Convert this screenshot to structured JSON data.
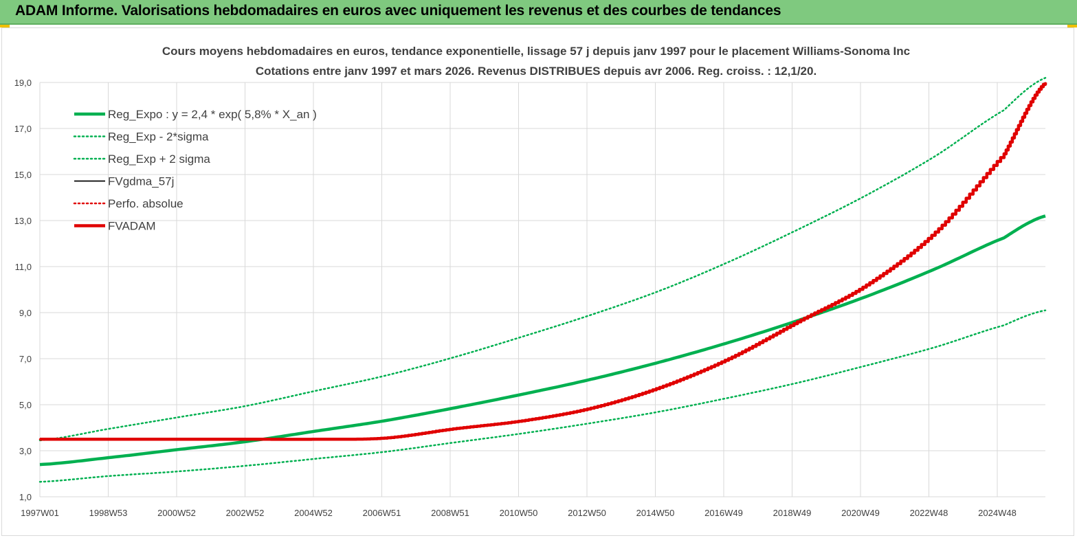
{
  "header": {
    "title": "ADAM Informe. Valorisations hebdomadaires en euros avec uniquement les revenus et des courbes de tendances"
  },
  "colors": {
    "green": "#00b050",
    "red": "#e00000",
    "black": "#000000",
    "header_bg": "#7fc97f",
    "grid": "#d9d9d9"
  },
  "chart_data": {
    "type": "line",
    "title": "Cours moyens hebdomadaires en euros, tendance exponentielle, lissage 57 j depuis janv 1997 pour le placement Williams-Sonoma Inc",
    "subtitle": "Cotations entre janv 1997 et mars 2026. Revenus DISTRIBUES depuis avr 2006. Reg. croiss. : 12,1/20.",
    "xlabel": "",
    "ylabel": "",
    "ylim": [
      1,
      19
    ],
    "grid": true,
    "legend_position": "top-left",
    "y_ticks": [
      "1,0",
      "3,0",
      "5,0",
      "7,0",
      "9,0",
      "11,0",
      "13,0",
      "15,0",
      "17,0",
      "19,0"
    ],
    "x_ticks": [
      "1997W01",
      "1998W53",
      "2000W52",
      "2002W52",
      "2004W52",
      "2006W51",
      "2008W51",
      "2010W50",
      "2012W50",
      "2014W50",
      "2016W49",
      "2018W49",
      "2020W49",
      "2022W48",
      "2024W48"
    ],
    "x": [
      1997.0,
      1999.0,
      2001.0,
      2003.0,
      2005.0,
      2007.0,
      2009.0,
      2011.0,
      2013.0,
      2015.0,
      2017.0,
      2019.0,
      2021.0,
      2023.0,
      2025.0,
      2026.2
    ],
    "series": [
      {
        "name": "Reg_Expo : y = 2,4 * exp( 5,8% *  X_an )",
        "style": "solid-thick",
        "color": "#00b050",
        "values": [
          2.4,
          2.7,
          3.05,
          3.4,
          3.85,
          4.3,
          4.85,
          5.45,
          6.1,
          6.85,
          7.7,
          8.65,
          9.7,
          10.9,
          12.25,
          13.2
        ]
      },
      {
        "name": "Reg_Exp - 2*sigma",
        "style": "dotted",
        "color": "#00b050",
        "values": [
          1.65,
          1.9,
          2.1,
          2.35,
          2.65,
          2.95,
          3.35,
          3.75,
          4.2,
          4.7,
          5.3,
          5.95,
          6.7,
          7.5,
          8.45,
          9.1
        ]
      },
      {
        "name": "Reg_Exp + 2 sigma",
        "style": "dotted",
        "color": "#00b050",
        "values": [
          3.45,
          3.95,
          4.45,
          4.95,
          5.6,
          6.25,
          7.05,
          7.95,
          8.9,
          9.95,
          11.2,
          12.6,
          14.1,
          15.8,
          17.8,
          19.2
        ]
      },
      {
        "name": "FVgdma_57j",
        "style": "solid",
        "color": "#000000",
        "values": [
          3.5,
          3.5,
          3.5,
          3.5,
          3.5,
          3.55,
          3.95,
          4.3,
          4.85,
          5.75,
          7.0,
          8.6,
          10.2,
          12.5,
          15.9,
          19.0
        ]
      },
      {
        "name": "Perfo. absolue",
        "style": "dotted",
        "color": "#e00000",
        "values": [
          3.5,
          3.5,
          3.5,
          3.5,
          3.5,
          3.55,
          3.95,
          4.3,
          4.85,
          5.75,
          7.0,
          8.6,
          10.2,
          12.5,
          15.9,
          19.0
        ]
      },
      {
        "name": "FVADAM",
        "style": "solid-thick",
        "color": "#e00000",
        "values": [
          3.5,
          3.5,
          3.5,
          3.5,
          3.5,
          3.55,
          3.95,
          4.3,
          4.85,
          5.75,
          7.0,
          8.6,
          10.2,
          12.5,
          15.9,
          19.0
        ]
      }
    ]
  }
}
